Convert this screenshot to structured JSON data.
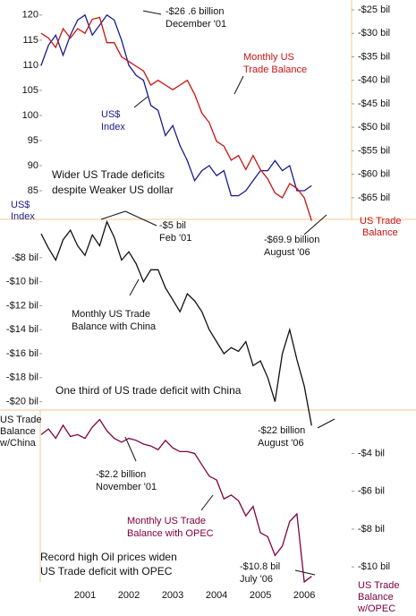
{
  "chart_data": [
    {
      "type": "line",
      "series": [
        {
          "name": [
            "US$",
            "Index"
          ],
          "color": "#1a1a8c",
          "axis": "y",
          "values": [
            110,
            114,
            116,
            112,
            116,
            119,
            120,
            116,
            118,
            120,
            119,
            115,
            110,
            108,
            107,
            102,
            101,
            96,
            98,
            94,
            91,
            87,
            89,
            90,
            88,
            89,
            84,
            84,
            85,
            87,
            89,
            89,
            91,
            89,
            90,
            85,
            85,
            86
          ]
        },
        {
          "name": [
            "Monthly US",
            "Trade Balance"
          ],
          "color": "#cc1111",
          "axis": "y2",
          "values": [
            -30,
            -31,
            -33,
            -29,
            -31,
            -29,
            -30,
            -27,
            -26.6,
            -32,
            -32,
            -35,
            -36,
            -37,
            -38,
            -41,
            -40,
            -41,
            -42,
            -41,
            -40,
            -43,
            -47,
            -49,
            -53,
            -54,
            -57,
            -56,
            -59,
            -56,
            -59,
            -61,
            -64,
            -65,
            -62,
            -63,
            -65,
            -69.9
          ]
        }
      ],
      "y_label": [
        "US$",
        "Index"
      ],
      "y2_label": [
        "US Trade",
        "Balance"
      ],
      "ylim": [
        123,
        79.3
      ],
      "yticks": [
        120,
        115,
        110,
        105,
        100,
        95,
        90,
        85
      ],
      "y2lim": [
        -22.9,
        -69.6
      ],
      "y2ticks": [
        {
          "value": -25,
          "label": "-$25 bil"
        },
        {
          "value": -30,
          "label": "-$30 bil"
        },
        {
          "value": -35,
          "label": "-$35 bil"
        },
        {
          "value": -40,
          "label": "-$40 bil"
        },
        {
          "value": -45,
          "label": "-$45 bil"
        },
        {
          "value": -50,
          "label": "-$50 bil"
        },
        {
          "value": -55,
          "label": "-$55 bil"
        },
        {
          "value": -60,
          "label": "-$60 bil"
        },
        {
          "value": -65,
          "label": "-$65 bil"
        }
      ],
      "annotations": [
        [
          "-$26 .6 billion",
          "December '01"
        ],
        [
          "Wider US Trade deficits",
          "despite Weaker US dollar"
        ],
        [
          "-$69.9 billion",
          "August '06"
        ]
      ]
    },
    {
      "type": "line",
      "series": [
        {
          "name": [
            "Monthly US Trade",
            "Balance with China"
          ],
          "color": "#111111",
          "axis": "y",
          "values": [
            -6,
            -7.2,
            -8.2,
            -6.5,
            -5.7,
            -7,
            -7.8,
            -6.1,
            -7,
            -5,
            -6.3,
            -8.2,
            -7.5,
            -8.5,
            -10,
            -9,
            -9,
            -10.5,
            -11.5,
            -12.5,
            -11,
            -11.6,
            -12.5,
            -14,
            -15,
            -16,
            -15.5,
            -15.8,
            -15,
            -17,
            -16.6,
            -18,
            -20,
            -16,
            -14,
            -16.5,
            -18.7,
            -22
          ]
        }
      ],
      "y_label": [
        "US Trade",
        "Balance",
        "w/China"
      ],
      "ylim": [
        -4.8,
        -20.7
      ],
      "yticks": [
        {
          "value": -8,
          "label": "-$8 bil"
        },
        {
          "value": -10,
          "label": "-$10 bil"
        },
        {
          "value": -12,
          "label": "-$12 bil"
        },
        {
          "value": -14,
          "label": "-$14 bil"
        },
        {
          "value": -16,
          "label": "-$16 bil"
        },
        {
          "value": -18,
          "label": "-$18 bil"
        },
        {
          "value": -20,
          "label": "-$20 bil"
        }
      ],
      "annotations": [
        [
          "-$5 bil",
          "Feb '01"
        ],
        [
          "One third of US trade deficit with China"
        ],
        [
          "-$22 billion",
          "August '06"
        ]
      ]
    },
    {
      "type": "line",
      "categories": [
        null,
        null,
        null,
        null,
        null,
        null,
        "2001",
        null,
        null,
        null,
        null,
        null,
        "2002",
        null,
        null,
        null,
        null,
        null,
        "2003",
        null,
        null,
        null,
        null,
        null,
        "2004",
        null,
        null,
        null,
        null,
        null,
        "2005",
        null,
        null,
        null,
        null,
        null,
        "2006",
        null
      ],
      "series": [
        {
          "name": [
            "Monthly US Trade",
            "Balance with OPEC"
          ],
          "color": "#800040",
          "axis": "y2",
          "values": [
            -3,
            -2.7,
            -3.2,
            -2.5,
            -3.1,
            -3,
            -3.2,
            -2.6,
            -2.2,
            -2.8,
            -3.2,
            -3.4,
            -3.2,
            -3.3,
            -3.5,
            -3.6,
            -3.8,
            -3.3,
            -3.7,
            -3.9,
            -3.9,
            -4,
            -4.6,
            -5.2,
            -5.4,
            -6.4,
            -6.2,
            -6.5,
            -7.3,
            -6.8,
            -8.2,
            -8.4,
            -9.4,
            -8.9,
            -7.6,
            -7.2,
            -10.8,
            -10.5
          ]
        }
      ],
      "y2_label": [
        "US Trade",
        "Balance",
        "w/OPEC"
      ],
      "y2lim": [
        -1.7,
        -10.8
      ],
      "y2ticks": [
        {
          "value": -4,
          "label": "-$4 bil"
        },
        {
          "value": -6,
          "label": "-$6 bil"
        },
        {
          "value": -8,
          "label": "-$8 bil"
        },
        {
          "value": -10,
          "label": "-$10 bil"
        }
      ],
      "annotations": [
        [
          "-$2.2 billion",
          "November '01"
        ],
        [
          "Record high Oil prices widen",
          "US Trade deficit with OPEC"
        ],
        [
          "-$10.8 bil",
          "July '06"
        ]
      ]
    }
  ]
}
